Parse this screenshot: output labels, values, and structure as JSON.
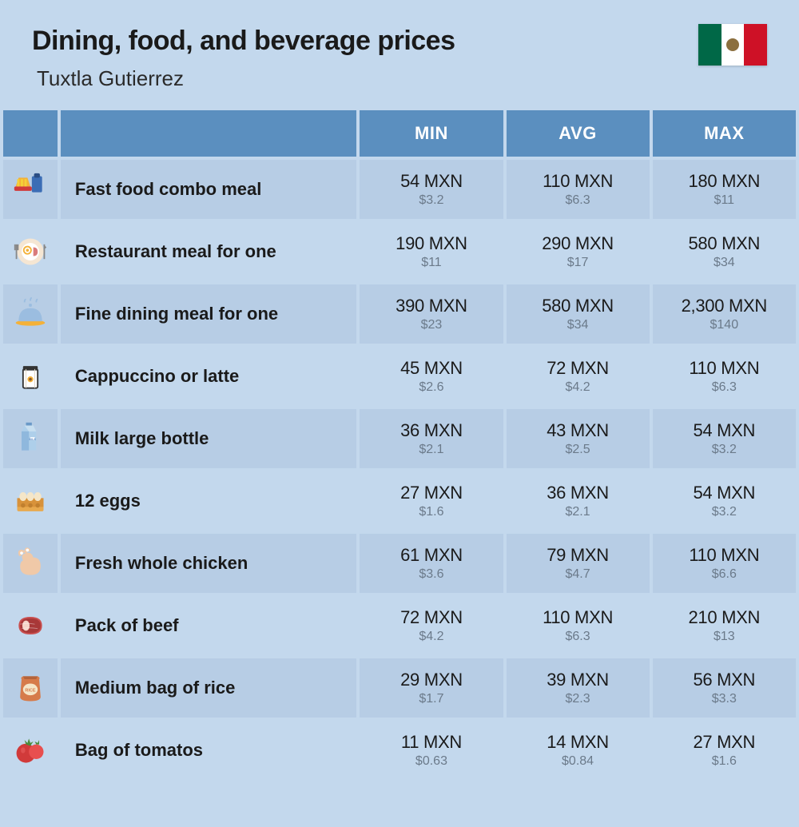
{
  "header": {
    "title": "Dining, food, and beverage prices",
    "subtitle": "Tuxtla Gutierrez",
    "flag": "mexico"
  },
  "columns": {
    "min": "MIN",
    "avg": "AVG",
    "max": "MAX"
  },
  "currency_local": "MXN",
  "currency_alt_prefix": "$",
  "colors": {
    "page_background": "#c3d8ed",
    "header_bar": "#5b8fbf",
    "header_text": "#ffffff",
    "row_odd": "#b7cde5",
    "row_even": "#c3d8ed",
    "text_primary": "#1a1a1a",
    "text_secondary": "#6b7a8a"
  },
  "typography": {
    "title_size_pt": 26,
    "title_weight": 800,
    "subtitle_size_pt": 20,
    "item_size_pt": 17,
    "item_weight": 700,
    "price_main_size_pt": 17,
    "price_sub_size_pt": 12
  },
  "rows": [
    {
      "icon": "fast-food",
      "label": "Fast food combo meal",
      "min_mxn": "54 MXN",
      "min_usd": "$3.2",
      "avg_mxn": "110 MXN",
      "avg_usd": "$6.3",
      "max_mxn": "180 MXN",
      "max_usd": "$11"
    },
    {
      "icon": "restaurant-meal",
      "label": "Restaurant meal for one",
      "min_mxn": "190 MXN",
      "min_usd": "$11",
      "avg_mxn": "290 MXN",
      "avg_usd": "$17",
      "max_mxn": "580 MXN",
      "max_usd": "$34"
    },
    {
      "icon": "fine-dining",
      "label": "Fine dining meal for one",
      "min_mxn": "390 MXN",
      "min_usd": "$23",
      "avg_mxn": "580 MXN",
      "avg_usd": "$34",
      "max_mxn": "2,300 MXN",
      "max_usd": "$140"
    },
    {
      "icon": "coffee-cup",
      "label": "Cappuccino or latte",
      "min_mxn": "45 MXN",
      "min_usd": "$2.6",
      "avg_mxn": "72 MXN",
      "avg_usd": "$4.2",
      "max_mxn": "110 MXN",
      "max_usd": "$6.3"
    },
    {
      "icon": "milk-carton",
      "label": "Milk large bottle",
      "min_mxn": "36 MXN",
      "min_usd": "$2.1",
      "avg_mxn": "43 MXN",
      "avg_usd": "$2.5",
      "max_mxn": "54 MXN",
      "max_usd": "$3.2"
    },
    {
      "icon": "eggs",
      "label": "12 eggs",
      "min_mxn": "27 MXN",
      "min_usd": "$1.6",
      "avg_mxn": "36 MXN",
      "avg_usd": "$2.1",
      "max_mxn": "54 MXN",
      "max_usd": "$3.2"
    },
    {
      "icon": "chicken",
      "label": "Fresh whole chicken",
      "min_mxn": "61 MXN",
      "min_usd": "$3.6",
      "avg_mxn": "79 MXN",
      "avg_usd": "$4.7",
      "max_mxn": "110 MXN",
      "max_usd": "$6.6"
    },
    {
      "icon": "beef-steak",
      "label": "Pack of beef",
      "min_mxn": "72 MXN",
      "min_usd": "$4.2",
      "avg_mxn": "110 MXN",
      "avg_usd": "$6.3",
      "max_mxn": "210 MXN",
      "max_usd": "$13"
    },
    {
      "icon": "rice-bag",
      "label": "Medium bag of rice",
      "min_mxn": "29 MXN",
      "min_usd": "$1.7",
      "avg_mxn": "39 MXN",
      "avg_usd": "$2.3",
      "max_mxn": "56 MXN",
      "max_usd": "$3.3"
    },
    {
      "icon": "tomatoes",
      "label": "Bag of tomatos",
      "min_mxn": "11 MXN",
      "min_usd": "$0.63",
      "avg_mxn": "14 MXN",
      "avg_usd": "$0.84",
      "max_mxn": "27 MXN",
      "max_usd": "$1.6"
    }
  ]
}
